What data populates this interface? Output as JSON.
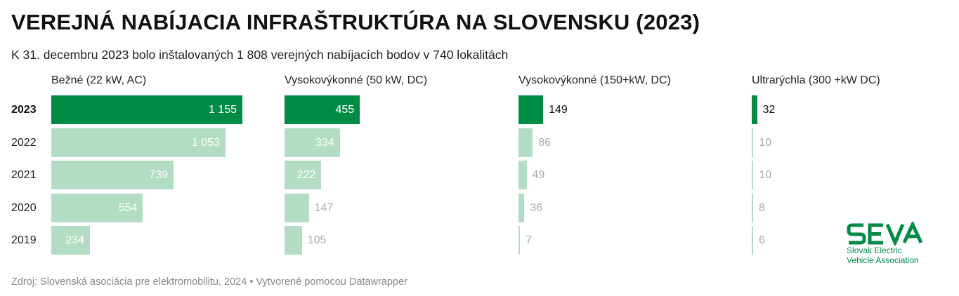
{
  "header": {
    "title": "VEREJNÁ NABÍJACIA INFRAŠTRUKTÚRA NA SLOVENSKU (2023)",
    "subtitle": "K 31. decembru 2023 bolo inštalovaných 1 808 verejných nabíjacích bodov v 740 lokalitách"
  },
  "footer": {
    "source": "Zdroj: Slovenská asociácia pre elektromobilitu, 2024 • Vytvorené pomocou Datawrapper"
  },
  "logo": {
    "wordmark": "SEVA",
    "line1": "Slovak Electric",
    "line2": "Vehicle Association"
  },
  "colors": {
    "current_year": "#008b45",
    "previous_years": "#b3dcc4"
  },
  "chart_data": {
    "type": "bar",
    "orientation": "horizontal",
    "layout": "small-multiples",
    "categories": [
      "2023",
      "2022",
      "2021",
      "2020",
      "2019"
    ],
    "highlighted_category": "2023",
    "series": [
      {
        "name": "Bežné (22 kW, AC)",
        "values": [
          1155,
          1053,
          739,
          554,
          234
        ],
        "labels": [
          "1 155",
          "1 053",
          "739",
          "554",
          "234"
        ]
      },
      {
        "name": "Vysokovýkonné (50 kW, DC)",
        "values": [
          455,
          334,
          222,
          147,
          105
        ],
        "labels": [
          "455",
          "334",
          "222",
          "147",
          "105"
        ]
      },
      {
        "name": "Vysokovýkonné (150+kW, DC)",
        "values": [
          149,
          86,
          49,
          36,
          7
        ],
        "labels": [
          "149",
          "86",
          "49",
          "36",
          "7"
        ]
      },
      {
        "name": "Ultrarýchla (300 +kW DC)",
        "values": [
          32,
          10,
          10,
          8,
          6
        ],
        "labels": [
          "32",
          "10",
          "10",
          "8",
          "6"
        ]
      }
    ],
    "xlim": [
      0,
      1155
    ],
    "grid": false,
    "legend": "none"
  }
}
